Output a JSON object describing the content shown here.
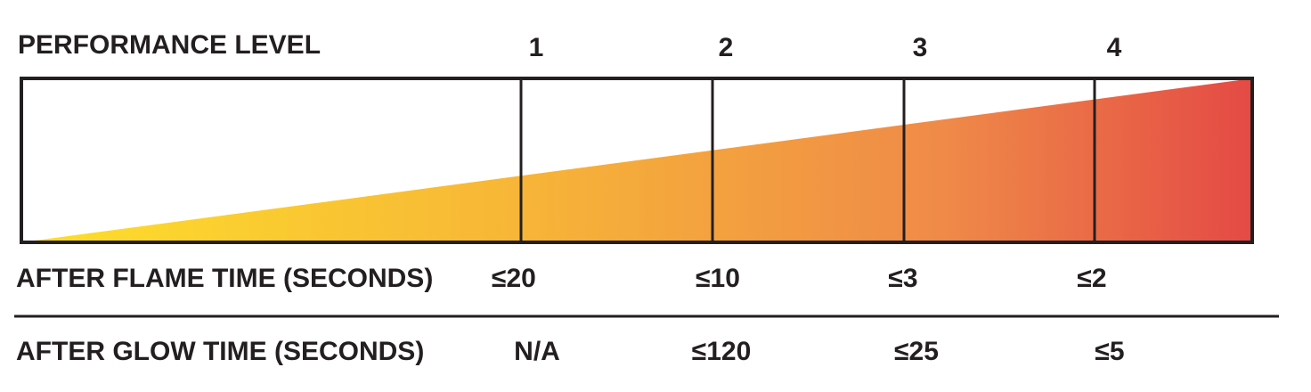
{
  "header": {
    "title": "PERFORMANCE LEVEL",
    "levels": [
      "1",
      "2",
      "3",
      "4"
    ]
  },
  "rows": [
    {
      "label": "AFTER FLAME TIME (SECONDS)",
      "values": [
        "≤20",
        "≤10",
        "≤3",
        "≤2"
      ]
    },
    {
      "label": "AFTER GLOW TIME (SECONDS)",
      "values": [
        "N/A",
        "≤120",
        "≤25",
        "≤5"
      ]
    }
  ]
}
